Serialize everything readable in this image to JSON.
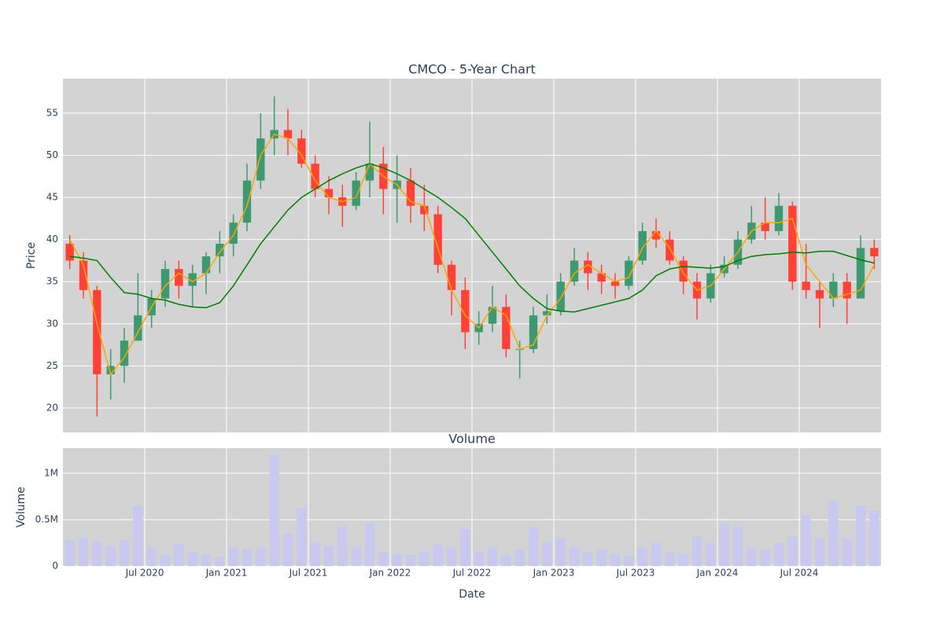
{
  "chart_data": [
    {
      "type": "candlestick",
      "title": "CMCO - 5-Year Chart",
      "ylabel": "Price",
      "x": [
        "2020-01",
        "2020-02",
        "2020-03",
        "2020-04",
        "2020-05",
        "2020-06",
        "2020-07",
        "2020-08",
        "2020-09",
        "2020-10",
        "2020-11",
        "2020-12",
        "2021-01",
        "2021-02",
        "2021-03",
        "2021-04",
        "2021-05",
        "2021-06",
        "2021-07",
        "2021-08",
        "2021-09",
        "2021-10",
        "2021-11",
        "2021-12",
        "2022-01",
        "2022-02",
        "2022-03",
        "2022-04",
        "2022-05",
        "2022-06",
        "2022-07",
        "2022-08",
        "2022-09",
        "2022-10",
        "2022-11",
        "2022-12",
        "2023-01",
        "2023-02",
        "2023-03",
        "2023-04",
        "2023-05",
        "2023-06",
        "2023-07",
        "2023-08",
        "2023-09",
        "2023-10",
        "2023-11",
        "2023-12",
        "2024-01",
        "2024-02",
        "2024-03",
        "2024-04",
        "2024-05",
        "2024-06",
        "2024-07",
        "2024-08",
        "2024-09",
        "2024-10",
        "2024-11",
        "2024-12"
      ],
      "open": [
        39.5,
        37.5,
        34,
        24,
        25,
        28,
        31,
        33,
        36.5,
        34.5,
        36,
        38,
        39.5,
        42,
        47,
        52,
        53,
        52,
        49,
        46,
        45,
        44,
        47,
        49,
        46,
        47,
        44,
        43,
        37,
        34,
        29,
        30,
        32,
        27,
        27,
        31,
        31.5,
        35,
        37.5,
        36,
        35,
        34.5,
        37.5,
        41,
        40,
        37.5,
        35,
        33,
        36,
        37,
        40,
        42,
        41,
        44,
        35,
        34,
        33,
        35,
        33,
        39
      ],
      "high": [
        40.5,
        38.5,
        34.5,
        27,
        29.5,
        36,
        34,
        37.5,
        37.5,
        37,
        38.5,
        41,
        43,
        49,
        55,
        57,
        55.5,
        53,
        50,
        47.5,
        46.5,
        48,
        54,
        51,
        50,
        48.5,
        46.5,
        44,
        37.5,
        35.5,
        31.5,
        34.5,
        33.5,
        28,
        32,
        33.5,
        36,
        39,
        38.5,
        37,
        36,
        38,
        42,
        42.5,
        41,
        38,
        36,
        37,
        38,
        41,
        44,
        45,
        45.5,
        44.5,
        39.5,
        35,
        36,
        36,
        40.5,
        40
      ],
      "low": [
        36.5,
        33,
        19,
        21,
        23,
        28,
        29.5,
        32,
        33,
        32,
        33.5,
        36,
        38,
        41,
        46,
        50,
        50,
        48.5,
        45,
        43,
        41.5,
        43.5,
        45,
        43,
        42,
        42,
        41,
        36,
        31,
        27,
        27.5,
        29,
        26,
        23.5,
        26.5,
        30,
        31,
        34.5,
        34,
        33.5,
        33,
        34,
        37,
        39,
        37,
        33.5,
        30.5,
        32.5,
        35.5,
        36.5,
        39.5,
        40,
        40.5,
        34,
        33,
        29.5,
        32,
        30,
        33,
        36.5
      ],
      "close": [
        37.5,
        34,
        24,
        25,
        28,
        31,
        33,
        36.5,
        34.5,
        36,
        38,
        39.5,
        42,
        47,
        52,
        53,
        52,
        49,
        46,
        45,
        44,
        47,
        49,
        46,
        47,
        44,
        43,
        37,
        34,
        29,
        30,
        32,
        27,
        27,
        31,
        31.5,
        35,
        37.5,
        36,
        35,
        34.5,
        37.5,
        41,
        40,
        37.5,
        35,
        33,
        36,
        37,
        40,
        42,
        41,
        44,
        35,
        34,
        33,
        35,
        33,
        39,
        38
      ],
      "increasing_color": "#3d9970",
      "decreasing_color": "#ff4136",
      "series": [
        {
          "color": "#ffa500",
          "values": [
            40,
            37,
            30,
            24,
            26,
            29,
            32,
            34.5,
            36,
            35,
            36,
            38.5,
            40.5,
            44,
            50,
            52.5,
            52,
            50,
            47,
            45,
            44.5,
            45,
            49,
            47.5,
            46.5,
            44.5,
            44,
            39,
            34,
            31,
            29.5,
            32,
            31,
            27,
            27.5,
            31,
            33,
            36,
            37,
            36,
            35,
            35.5,
            39,
            41,
            39,
            36,
            34,
            34.5,
            36.5,
            38.5,
            41,
            42,
            42,
            42.5,
            37,
            35,
            33,
            33.5,
            34,
            37
          ]
        },
        {
          "color": "#008000",
          "values": [
            38,
            37.8,
            37.5,
            35.5,
            33.7,
            33.5,
            33,
            32.8,
            32.3,
            32,
            31.9,
            32.5,
            34.5,
            37,
            39.5,
            41.5,
            43.5,
            45,
            46,
            47,
            47.8,
            48.5,
            49,
            48.5,
            47.8,
            47,
            46,
            45,
            43.8,
            42.5,
            40.5,
            38.5,
            36.5,
            34.5,
            33,
            31.8,
            31.5,
            31.4,
            31.8,
            32.2,
            32.6,
            33,
            34,
            35.7,
            36.5,
            36.8,
            36.7,
            36.6,
            36.8,
            37.5,
            38,
            38.2,
            38.3,
            38.5,
            38.4,
            38.6,
            38.6,
            38.1,
            37.6,
            37.2
          ]
        }
      ],
      "xlim": [
        "2020-01",
        "2025-01"
      ],
      "ylim": [
        17.1,
        59.1
      ],
      "yticks": [
        20,
        25,
        30,
        35,
        40,
        45,
        50,
        55
      ],
      "xticks": [
        "2020-07",
        "2021-01",
        "2021-07",
        "2022-01",
        "2022-07",
        "2023-01",
        "2023-07",
        "2024-01",
        "2024-07"
      ],
      "grid": true
    },
    {
      "type": "bar",
      "title": "Volume",
      "ylabel": "Volume",
      "xlabel": "Date",
      "color": "#c8c8f0",
      "x": [
        "2020-01",
        "2020-02",
        "2020-03",
        "2020-04",
        "2020-05",
        "2020-06",
        "2020-07",
        "2020-08",
        "2020-09",
        "2020-10",
        "2020-11",
        "2020-12",
        "2021-01",
        "2021-02",
        "2021-03",
        "2021-04",
        "2021-05",
        "2021-06",
        "2021-07",
        "2021-08",
        "2021-09",
        "2021-10",
        "2021-11",
        "2021-12",
        "2022-01",
        "2022-02",
        "2022-03",
        "2022-04",
        "2022-05",
        "2022-06",
        "2022-07",
        "2022-08",
        "2022-09",
        "2022-10",
        "2022-11",
        "2022-12",
        "2023-01",
        "2023-02",
        "2023-03",
        "2023-04",
        "2023-05",
        "2023-06",
        "2023-07",
        "2023-08",
        "2023-09",
        "2023-10",
        "2023-11",
        "2023-12",
        "2024-01",
        "2024-02",
        "2024-03",
        "2024-04",
        "2024-05",
        "2024-06",
        "2024-07",
        "2024-08",
        "2024-09",
        "2024-10",
        "2024-11",
        "2024-12"
      ],
      "values": [
        280000,
        300000,
        260000,
        220000,
        280000,
        650000,
        200000,
        120000,
        240000,
        150000,
        120000,
        100000,
        200000,
        180000,
        200000,
        1200000,
        350000,
        620000,
        250000,
        220000,
        420000,
        200000,
        460000,
        150000,
        130000,
        120000,
        160000,
        230000,
        200000,
        400000,
        150000,
        200000,
        120000,
        180000,
        420000,
        260000,
        300000,
        200000,
        150000,
        180000,
        130000,
        110000,
        200000,
        250000,
        150000,
        130000,
        320000,
        250000,
        460000,
        420000,
        200000,
        180000,
        250000,
        320000,
        550000,
        300000,
        700000,
        300000,
        650000,
        600000
      ],
      "xlim": [
        "2020-01",
        "2025-01"
      ],
      "ylim": [
        0,
        1270000
      ],
      "yticks": [
        0,
        {
          "value": 500000,
          "label": "0.5M"
        },
        {
          "value": 1000000,
          "label": "1M"
        }
      ],
      "xticks": [
        {
          "value": "2020-07",
          "label": "Jul 2020"
        },
        {
          "value": "2021-01",
          "label": "Jan 2021"
        },
        {
          "value": "2021-07",
          "label": "Jul 2021"
        },
        {
          "value": "2022-01",
          "label": "Jan 2022"
        },
        {
          "value": "2022-07",
          "label": "Jul 2022"
        },
        {
          "value": "2023-01",
          "label": "Jan 2023"
        },
        {
          "value": "2023-07",
          "label": "Jul 2023"
        },
        {
          "value": "2024-01",
          "label": "Jan 2024"
        },
        {
          "value": "2024-07",
          "label": "Jul 2024"
        }
      ],
      "grid": true
    }
  ]
}
